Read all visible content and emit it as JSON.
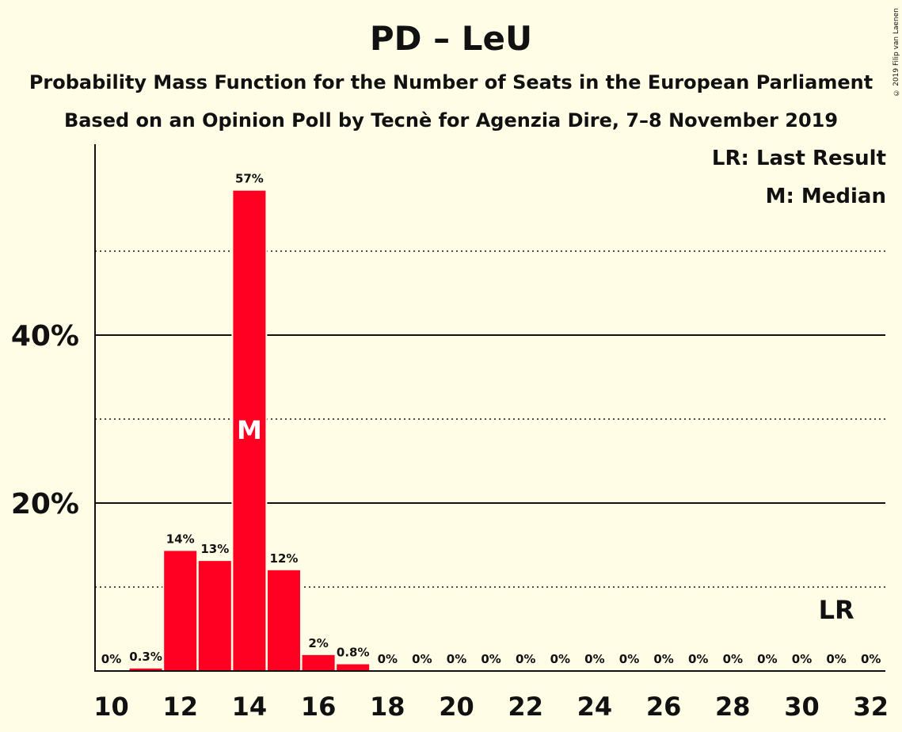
{
  "chart_data": {
    "type": "bar",
    "title": "PD – LeU",
    "subtitle_1": "Probability Mass Function for the Number of Seats in the European Parliament",
    "subtitle_2": "Based on an Opinion Poll by Tecnè for Agenzia Dire, 7–8 November 2019",
    "legend": {
      "last_result": "LR: Last Result",
      "median": "M: Median"
    },
    "copyright": "© 2019 Filip van Laenen",
    "x": [
      10,
      11,
      12,
      13,
      14,
      15,
      16,
      17,
      18,
      19,
      20,
      21,
      22,
      23,
      24,
      25,
      26,
      27,
      28,
      29,
      30,
      31,
      32
    ],
    "values": [
      0,
      0.3,
      14.3,
      13.1,
      57.2,
      12.0,
      1.9,
      0.8,
      0,
      0,
      0,
      0,
      0,
      0,
      0,
      0,
      0,
      0,
      0,
      0,
      0,
      0,
      0
    ],
    "labels": [
      "0%",
      "0.3%",
      "14%",
      "13%",
      "57%",
      "12%",
      "2%",
      "0.8%",
      "0%",
      "0%",
      "0%",
      "0%",
      "0%",
      "0%",
      "0%",
      "0%",
      "0%",
      "0%",
      "0%",
      "0%",
      "0%",
      "0%",
      "0%"
    ],
    "x_tick_labels": [
      "10",
      "12",
      "14",
      "16",
      "18",
      "20",
      "22",
      "24",
      "26",
      "28",
      "30",
      "32"
    ],
    "y_tick_labels": [
      "20%",
      "40%"
    ],
    "ylim": [
      0,
      62
    ],
    "major_gridlines": [
      20,
      40
    ],
    "minor_gridlines": [
      10,
      30,
      50
    ],
    "median_seat": 14,
    "median_marker": "M",
    "last_result_seat": 31,
    "last_result_marker": "LR",
    "colors": {
      "bar": "#FF0022",
      "background": "#FFFDE6",
      "text": "#111111",
      "median_text": "#FFFFFF"
    }
  }
}
